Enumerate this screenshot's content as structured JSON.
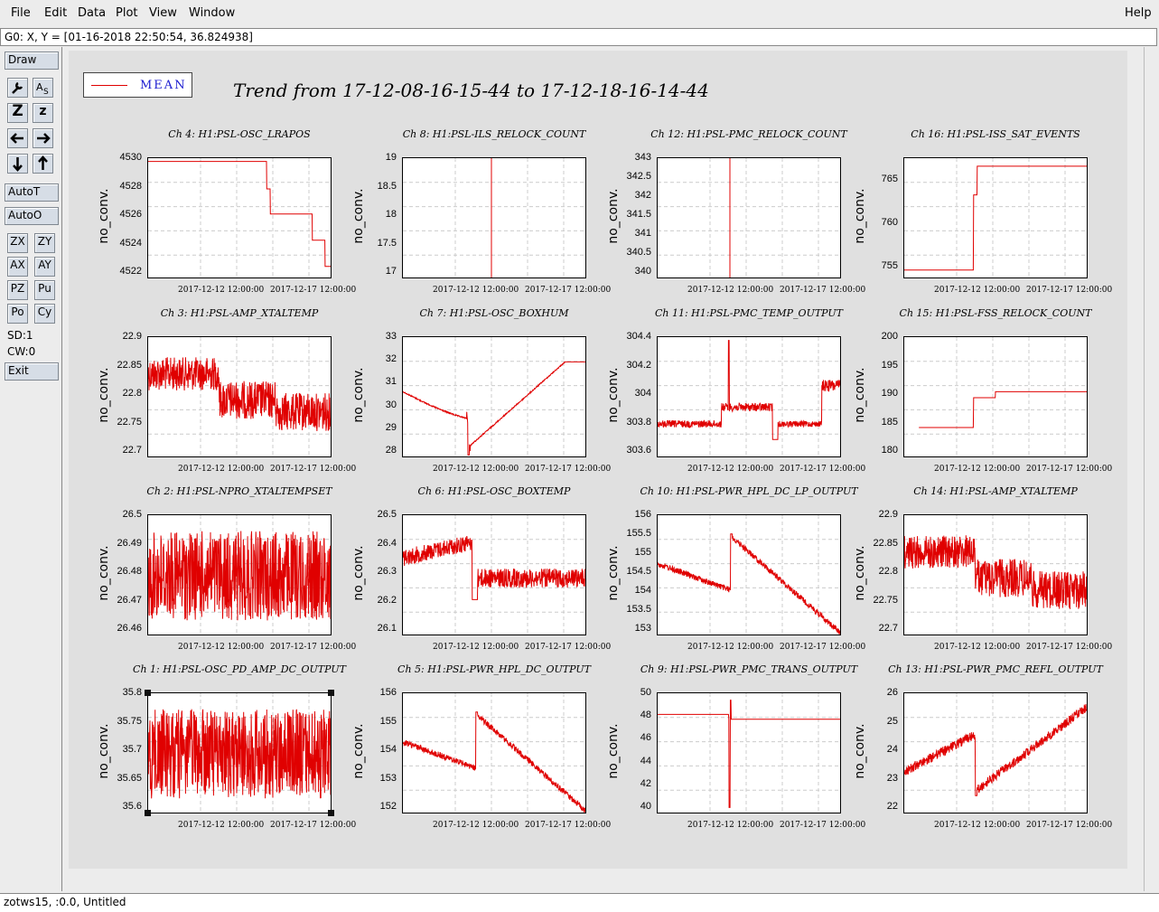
{
  "menu": {
    "file": "File",
    "edit": "Edit",
    "data": "Data",
    "plot": "Plot",
    "view": "View",
    "window": "Window",
    "help": "Help"
  },
  "coords_text": "G0: X, Y = [01-16-2018 22:50:54, 36.824938]",
  "toolbar": {
    "draw": "Draw",
    "auto_t": "AutoT",
    "auto_o": "AutoO",
    "zx": "ZX",
    "zy": "ZY",
    "ax": "AX",
    "ay": "AY",
    "pz": "PZ",
    "pu": "Pu",
    "po": "Po",
    "cy": "Cy",
    "sd": "SD:1",
    "cw": "CW:0",
    "exit": "Exit",
    "zoom_big": "Z",
    "zoom_small": "z"
  },
  "status_text": "zotws15, :0.0, Untitled",
  "legend": {
    "label": "MEAN",
    "color": "#e00000"
  },
  "main_title": "Trend from 17-12-08-16-15-44 to 17-12-18-16-14-44",
  "ylabel_all": "no_conv.",
  "xticks_all": [
    "2017-12-12 12:00:00",
    "2017-12-17 12:00:00"
  ],
  "charts": [
    {
      "title": "Ch 4: H1:PSL-OSC_LRAPOS",
      "yticks": [
        "4530",
        "4528",
        "4526",
        "4524",
        "4522"
      ],
      "shape": "steps_down"
    },
    {
      "title": "Ch 8: H1:PSL-ILS_RELOCK_COUNT",
      "yticks": [
        "19",
        "18.5",
        "18",
        "17.5",
        "17"
      ],
      "shape": "spike_full"
    },
    {
      "title": "Ch 12: H1:PSL-PMC_RELOCK_COUNT",
      "yticks": [
        "343",
        "342.5",
        "342",
        "341.5",
        "341",
        "340.5",
        "340"
      ],
      "shape": "spike_full2"
    },
    {
      "title": "Ch 16: H1:PSL-ISS_SAT_EVENTS",
      "yticks": [
        "765",
        "760",
        "755"
      ],
      "shape": "step_up"
    },
    {
      "title": "Ch 3: H1:PSL-AMP_XTALTEMP",
      "yticks": [
        "22.9",
        "22.85",
        "22.8",
        "22.75",
        "22.7"
      ],
      "shape": "band_drop"
    },
    {
      "title": "Ch 7: H1:PSL-OSC_BOXHUM",
      "yticks": [
        "33",
        "32",
        "31",
        "30",
        "29",
        "28"
      ],
      "shape": "hum"
    },
    {
      "title": "Ch 11: H1:PSL-PMC_TEMP_OUTPUT",
      "yticks": [
        "304.4",
        "304.2",
        "304",
        "303.8",
        "303.6"
      ],
      "shape": "pmc_temp"
    },
    {
      "title": "Ch 15: H1:PSL-FSS_RELOCK_COUNT",
      "yticks": [
        "200",
        "195",
        "190",
        "185",
        "180"
      ],
      "shape": "relock_steps"
    },
    {
      "title": "Ch 2: H1:PSL-NPRO_XTALTEMPSET",
      "yticks": [
        "26.5",
        "26.49",
        "26.48",
        "26.47",
        "26.46"
      ],
      "shape": "noise_mid"
    },
    {
      "title": "Ch 6: H1:PSL-OSC_BOXTEMP",
      "yticks": [
        "26.5",
        "26.4",
        "26.3",
        "26.2",
        "26.1"
      ],
      "shape": "boxtemp"
    },
    {
      "title": "Ch 10: H1:PSL-PWR_HPL_DC_LP_OUTPUT",
      "yticks": [
        "156",
        "155.5",
        "155",
        "154.5",
        "154",
        "153.5",
        "153"
      ],
      "shape": "saw_down"
    },
    {
      "title": "Ch 14: H1:PSL-AMP_XTALTEMP",
      "yticks": [
        "22.9",
        "22.85",
        "22.8",
        "22.75",
        "22.7"
      ],
      "shape": "band_drop"
    },
    {
      "title": "Ch 1: H1:PSL-OSC_PD_AMP_DC_OUTPUT",
      "yticks": [
        "35.8",
        "35.75",
        "35.7",
        "35.65",
        "35.6"
      ],
      "shape": "noise_mid2"
    },
    {
      "title": "Ch 5: H1:PSL-PWR_HPL_DC_OUTPUT",
      "yticks": [
        "156",
        "155",
        "154",
        "153",
        "152"
      ],
      "shape": "saw_down2"
    },
    {
      "title": "Ch 9: H1:PSL-PWR_PMC_TRANS_OUTPUT",
      "yticks": [
        "50",
        "48",
        "46",
        "44",
        "42",
        "40"
      ],
      "shape": "flat_spike"
    },
    {
      "title": "Ch 13: H1:PSL-PWR_PMC_REFL_OUTPUT",
      "yticks": [
        "26",
        "25",
        "24",
        "23",
        "22"
      ],
      "shape": "saw_up"
    }
  ]
}
